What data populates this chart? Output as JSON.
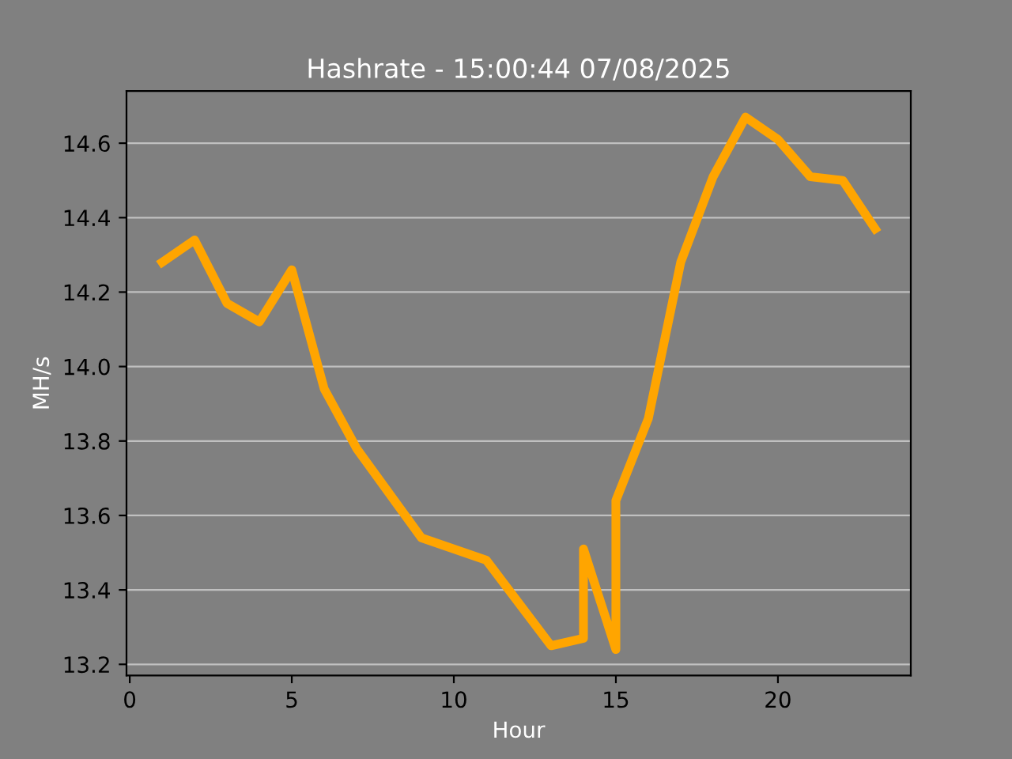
{
  "chart_data": {
    "type": "line",
    "title": "Hashrate - 15:00:44 07/08/2025",
    "xlabel": "Hour",
    "ylabel": "MH/s",
    "series": [
      {
        "color": "#ffa500",
        "x": [
          1,
          2,
          3,
          4,
          5,
          6,
          7,
          9,
          11,
          13,
          14,
          14,
          15,
          15,
          16,
          17,
          18,
          19,
          20,
          21,
          22,
          23
        ],
        "values": [
          14.28,
          14.34,
          14.17,
          14.12,
          14.26,
          13.94,
          13.78,
          13.54,
          13.48,
          13.25,
          13.27,
          13.51,
          13.24,
          13.64,
          13.86,
          14.28,
          14.51,
          14.67,
          14.61,
          14.51,
          14.5,
          14.37
        ]
      }
    ],
    "xlim": [
      -0.1,
      24.1
    ],
    "ylim": [
      13.17,
      14.74
    ],
    "xticks": [
      0,
      5,
      10,
      15,
      20
    ],
    "yticks": [
      13.2,
      13.4,
      13.6,
      13.8,
      {
        "value": 14,
        "label": "14.0"
      },
      14.2,
      14.4,
      14.6
    ],
    "grid": "y",
    "marker": "none",
    "line_style": "solid",
    "legend": false
  }
}
